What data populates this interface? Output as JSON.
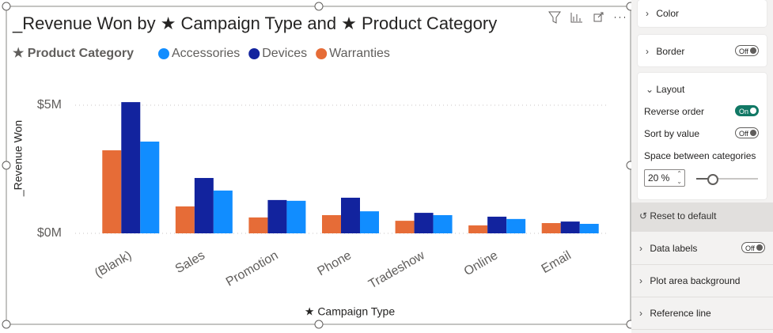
{
  "chart_data": {
    "type": "bar",
    "title": "_Revenue Won by ★ Campaign Type and ★ Product Category",
    "legend_title": "★ Product Category",
    "x_label": "★ Campaign Type",
    "y_label": "_Revenue Won",
    "categories": [
      "(Blank)",
      "Sales",
      "Promotion",
      "Phone",
      "Tradeshow",
      "Online",
      "Email"
    ],
    "series": [
      {
        "name": "Accessories",
        "color": "#118DFF",
        "values": [
          3580000,
          1670000,
          1270000,
          860000,
          710000,
          560000,
          370000
        ]
      },
      {
        "name": "Devices",
        "color": "#12239E",
        "values": [
          5120000,
          2160000,
          1300000,
          1390000,
          800000,
          650000,
          460000
        ]
      },
      {
        "name": "Warranties",
        "color": "#E66C37",
        "values": [
          3240000,
          1050000,
          620000,
          710000,
          490000,
          310000,
          400000
        ]
      }
    ],
    "ylim": [
      0,
      5500000
    ],
    "yticks": [
      {
        "value": 0,
        "label": "$0M"
      },
      {
        "value": 5000000,
        "label": "$5M"
      }
    ],
    "grid": true
  },
  "format_pane": {
    "color": "Color",
    "border": {
      "label": "Border",
      "toggle": "Off"
    },
    "layout": {
      "label": "Layout",
      "reverse_order": {
        "label": "Reverse order",
        "toggle": "On"
      },
      "sort_by_value": {
        "label": "Sort by value",
        "toggle": "Off"
      },
      "space_between": {
        "label": "Space between categories",
        "input": "20 %"
      },
      "reset": "Reset to default"
    },
    "data_labels": {
      "label": "Data labels",
      "toggle": "Off"
    },
    "plot_area_background": "Plot area background",
    "reference_line": "Reference line"
  }
}
